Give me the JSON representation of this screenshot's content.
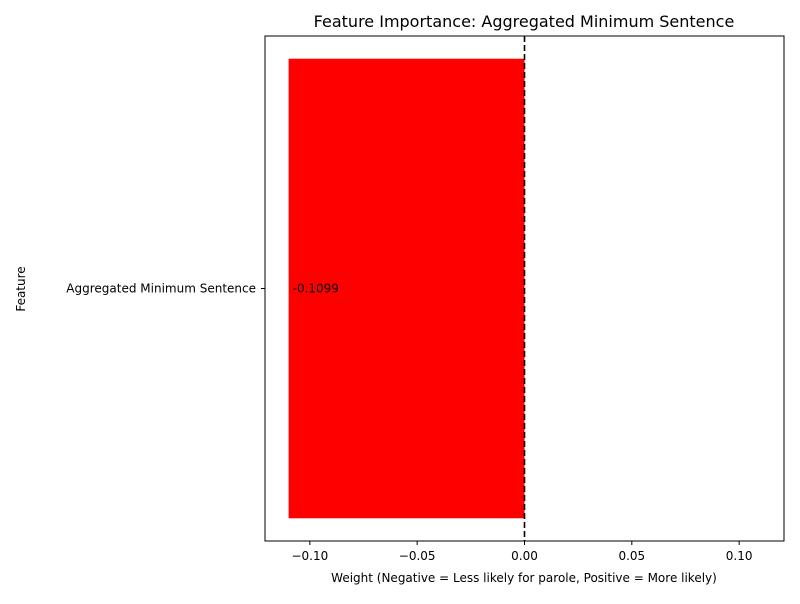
{
  "chart_data": {
    "type": "bar",
    "orientation": "horizontal",
    "title": "Feature Importance: Aggregated Minimum Sentence",
    "xlabel": "Weight (Negative = Less likely for parole, Positive = More likely)",
    "ylabel": "Feature",
    "categories": [
      "Aggregated Minimum Sentence"
    ],
    "values": [
      -0.1099
    ],
    "data_labels": [
      "-0.1099"
    ],
    "xlim": [
      -0.1209,
      0.1209
    ],
    "xticks": [
      -0.1,
      -0.05,
      0.0,
      0.05,
      0.1
    ],
    "xtick_labels": [
      "−0.10",
      "−0.05",
      "0.00",
      "0.05",
      "0.10"
    ],
    "reference_line": {
      "x": 0.0,
      "style": "dashed"
    },
    "bar_color": "#ff0000",
    "grid": false,
    "legend": "none"
  }
}
